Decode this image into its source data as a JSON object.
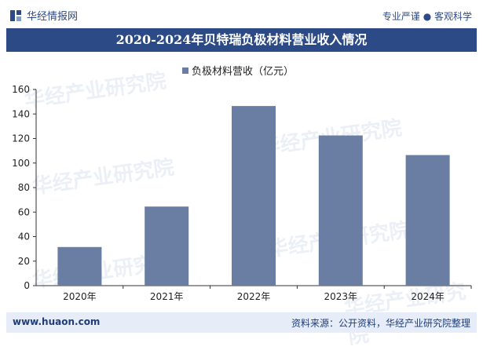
{
  "header": {
    "brand": "华经情报网",
    "slogan": "专业严谨 ● 客观科学"
  },
  "title": "2020-2024年贝特瑞负极材料营业收入情况",
  "footer": {
    "site": "www.huaon.com",
    "source": "资料来源：公开资料，华经产业研究院整理"
  },
  "watermark": "华经产业研究院",
  "colors": {
    "bar": "#6a7ea3",
    "title_bg": "#2b4a86",
    "footer_bg": "#e6edf8"
  },
  "chart_data": {
    "type": "bar",
    "categories": [
      "2020年",
      "2021年",
      "2022年",
      "2023年",
      "2024年"
    ],
    "series": [
      {
        "name": "负极材料营收（亿元）",
        "values": [
          31.5,
          64.5,
          146.5,
          122.5,
          106.5
        ]
      }
    ],
    "yticks": [
      0,
      20,
      40,
      60,
      80,
      100,
      120,
      140,
      160
    ],
    "ylim": [
      0,
      160
    ],
    "legend": "top-center",
    "grid": false
  }
}
